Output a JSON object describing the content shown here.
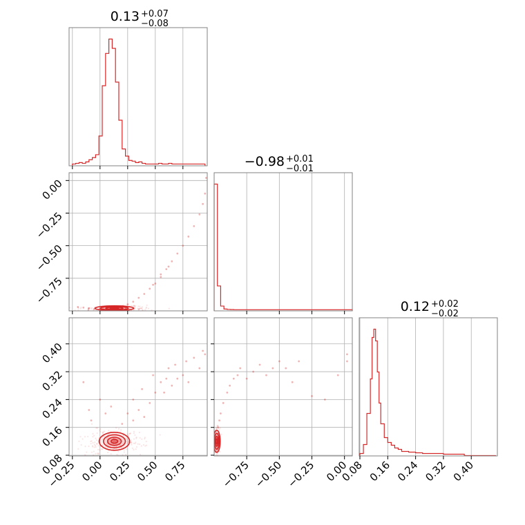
{
  "chart_data": {
    "type": "corner",
    "color": "#d62728",
    "grid": true,
    "params": [
      {
        "range": [
          -0.28,
          0.97
        ],
        "ticks": [
          -0.25,
          0.0,
          0.25,
          0.5,
          0.75
        ],
        "tick_labels": [
          "−0.25",
          "0.00",
          "0.25",
          "0.50",
          "0.75"
        ],
        "title": {
          "value": "0.13",
          "plus": "+0.07",
          "minus": "−0.08"
        },
        "hist": {
          "bin_edges": [
            -0.25,
            -0.22,
            -0.19,
            -0.16,
            -0.13,
            -0.1,
            -0.07,
            -0.04,
            -0.01,
            0.02,
            0.05,
            0.08,
            0.11,
            0.14,
            0.17,
            0.2,
            0.23,
            0.26,
            0.29,
            0.32,
            0.35,
            0.38,
            0.41,
            0.44,
            0.47,
            0.5,
            0.53,
            0.56,
            0.59,
            0.62,
            0.65,
            0.68,
            0.71,
            0.74,
            0.77,
            0.8,
            0.83,
            0.86,
            0.89,
            0.92,
            0.95
          ],
          "counts": [
            1,
            2,
            3,
            2,
            4,
            7,
            10,
            14,
            40,
            110,
            155,
            175,
            162,
            115,
            62,
            22,
            12,
            6,
            5,
            3,
            4,
            2,
            1,
            1,
            1,
            1,
            2,
            1,
            1,
            2,
            1,
            1,
            1,
            1,
            1,
            1,
            1,
            1,
            1,
            1
          ]
        }
      },
      {
        "range": [
          -1.0,
          0.06
        ],
        "ticks": [
          -0.75,
          -0.5,
          -0.25,
          0.0
        ],
        "tick_labels": [
          "−0.75",
          "−0.50",
          "−0.25",
          "0.00"
        ],
        "title": {
          "value": "−0.98",
          "plus": "+0.01",
          "minus": "−0.01"
        },
        "hist": {
          "bin_edges": [
            -1.0,
            -0.975,
            -0.95,
            -0.925,
            -0.9,
            -0.875,
            -0.85,
            -0.8,
            -0.7,
            -0.6,
            -0.5,
            -0.4,
            -0.3,
            -0.2,
            -0.1,
            0.0,
            0.06
          ],
          "counts": [
            1000,
            190,
            30,
            6,
            3,
            2,
            1,
            1,
            1,
            1,
            1,
            1,
            1,
            1,
            1,
            1
          ]
        }
      },
      {
        "range": [
          0.078,
          0.475
        ],
        "ticks": [
          0.08,
          0.16,
          0.24,
          0.32,
          0.4
        ],
        "tick_labels": [
          "0.08",
          "0.16",
          "0.24",
          "0.32",
          "0.40"
        ],
        "title": {
          "value": "0.12",
          "plus": "+0.02",
          "minus": "−0.02"
        },
        "hist": {
          "bin_edges": [
            0.08,
            0.09,
            0.1,
            0.11,
            0.115,
            0.12,
            0.125,
            0.13,
            0.135,
            0.14,
            0.15,
            0.16,
            0.17,
            0.18,
            0.19,
            0.2,
            0.22,
            0.24,
            0.26,
            0.28,
            0.3,
            0.32,
            0.34,
            0.36,
            0.38,
            0.4,
            0.42,
            0.44,
            0.47
          ],
          "counts": [
            2,
            15,
            60,
            110,
            170,
            182,
            165,
            120,
            75,
            45,
            25,
            18,
            14,
            10,
            8,
            5,
            4,
            3,
            2,
            2,
            2,
            1,
            1,
            1,
            0,
            0,
            0,
            0
          ]
        }
      }
    ],
    "scatter": {
      "p1_p0": [
        [
          -0.2,
          -0.97
        ],
        [
          -0.15,
          -0.975
        ],
        [
          -0.1,
          -0.98
        ],
        [
          -0.05,
          -0.985
        ],
        [
          0.0,
          -0.985
        ],
        [
          0.05,
          -0.985
        ],
        [
          0.1,
          -0.98
        ],
        [
          0.15,
          -0.975
        ],
        [
          0.2,
          -0.965
        ],
        [
          0.25,
          -0.95
        ],
        [
          0.3,
          -0.93
        ],
        [
          0.35,
          -0.9
        ],
        [
          0.4,
          -0.87
        ],
        [
          0.45,
          -0.83
        ],
        [
          0.5,
          -0.79
        ],
        [
          0.55,
          -0.74
        ],
        [
          0.6,
          -0.68
        ],
        [
          0.65,
          -0.62
        ],
        [
          0.7,
          -0.56
        ],
        [
          0.75,
          -0.5
        ],
        [
          0.8,
          -0.43
        ],
        [
          0.85,
          -0.35
        ],
        [
          0.9,
          -0.26
        ],
        [
          0.93,
          -0.18
        ],
        [
          0.95,
          -0.1
        ],
        [
          0.96,
          0.02
        ],
        [
          0.62,
          -0.66
        ],
        [
          0.55,
          -0.72
        ],
        [
          0.48,
          -0.8
        ]
      ],
      "p2_p0": [
        [
          -0.15,
          0.29
        ],
        [
          -0.1,
          0.21
        ],
        [
          -0.08,
          0.18
        ],
        [
          0.0,
          0.24
        ],
        [
          0.05,
          0.2
        ],
        [
          0.1,
          0.22
        ],
        [
          0.3,
          0.24
        ],
        [
          0.35,
          0.21
        ],
        [
          0.4,
          0.19
        ],
        [
          0.45,
          0.23
        ],
        [
          0.5,
          0.26
        ],
        [
          0.55,
          0.29
        ],
        [
          0.6,
          0.3
        ],
        [
          0.62,
          0.33
        ],
        [
          0.65,
          0.28
        ],
        [
          0.7,
          0.3
        ],
        [
          0.75,
          0.31
        ],
        [
          0.78,
          0.35
        ],
        [
          0.8,
          0.29
        ],
        [
          0.85,
          0.36
        ],
        [
          0.9,
          0.33
        ],
        [
          0.93,
          0.38
        ],
        [
          0.95,
          0.37
        ],
        [
          0.3,
          0.18
        ],
        [
          0.25,
          0.2
        ],
        [
          0.2,
          0.17
        ],
        [
          0.38,
          0.27
        ],
        [
          0.48,
          0.31
        ],
        [
          0.58,
          0.26
        ],
        [
          0.68,
          0.34
        ]
      ],
      "p2_p1": [
        [
          -0.95,
          0.2
        ],
        [
          -0.93,
          0.23
        ],
        [
          -0.9,
          0.26
        ],
        [
          -0.88,
          0.28
        ],
        [
          -0.85,
          0.3
        ],
        [
          -0.82,
          0.31
        ],
        [
          -0.8,
          0.33
        ],
        [
          -0.75,
          0.3
        ],
        [
          -0.7,
          0.32
        ],
        [
          -0.65,
          0.34
        ],
        [
          -0.6,
          0.31
        ],
        [
          -0.55,
          0.33
        ],
        [
          -0.5,
          0.35
        ],
        [
          -0.45,
          0.33
        ],
        [
          -0.4,
          0.29
        ],
        [
          -0.35,
          0.35
        ],
        [
          -0.25,
          0.25
        ],
        [
          -0.15,
          0.24
        ],
        [
          -0.05,
          0.31
        ],
        [
          0.02,
          0.37
        ],
        [
          0.02,
          0.35
        ],
        [
          -0.97,
          0.16
        ],
        [
          -0.96,
          0.18
        ]
      ]
    },
    "contour_center": {
      "p0": 0.13,
      "p1": -0.98,
      "p2": 0.12
    }
  }
}
